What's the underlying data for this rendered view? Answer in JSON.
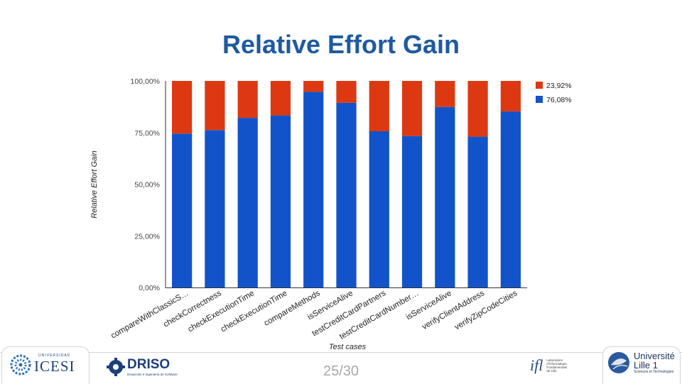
{
  "slide": {
    "title": "Relative Effort Gain",
    "page": "25/30",
    "accent": "#1f5aa0"
  },
  "chart_data": {
    "type": "bar",
    "stacked": true,
    "categories": [
      "compareWithClassicS…",
      "checkCorrectness",
      "checkExecutionTime",
      "checkExecutionTime",
      "compareMethods",
      "isServiceAlive",
      "testCreditCardPartners",
      "testCreditCardNumber…",
      "isServiceAlive",
      "verifyClientAddress",
      "verifyZipCodeCities"
    ],
    "series": [
      {
        "name": "76,08%",
        "color": "#1353c9",
        "values": [
          74.5,
          76.2,
          82.1,
          83.3,
          94.7,
          89.4,
          75.6,
          73.3,
          87.4,
          73.0,
          85.2
        ]
      },
      {
        "name": "23,92%",
        "color": "#dc3912",
        "values": [
          25.5,
          23.8,
          17.9,
          16.7,
          5.3,
          10.6,
          24.4,
          26.7,
          12.6,
          27.0,
          14.8
        ]
      }
    ],
    "legend_order": [
      1,
      0
    ],
    "yticks": [
      {
        "value": 0,
        "label": "0,00%"
      },
      {
        "value": 25,
        "label": "25,00%"
      },
      {
        "value": 50,
        "label": "50,00%"
      },
      {
        "value": 75,
        "label": "75,00%"
      },
      {
        "value": 100,
        "label": "100,00%"
      }
    ],
    "ylim": [
      0,
      100
    ],
    "xlabel": "Test cases",
    "ylabel": "Relative Effort Gain",
    "legend_position": "right",
    "grid": false
  },
  "footer": {
    "logos": [
      {
        "icon": "icesi-logo",
        "small": "UNIVERSIDAD",
        "name": "ICESI"
      },
      {
        "icon": "driso-logo",
        "name": "DRISO",
        "sub": "Desarrollo e Ingeniería de Software"
      },
      {
        "icon": "ifl-logo",
        "name": "ifl",
        "sub": [
          "Laboratoire",
          "d'Informatique",
          "Fondamentale",
          "de Lille"
        ]
      },
      {
        "icon": "lille1-logo",
        "name": [
          "Université",
          "Lille 1"
        ],
        "sub": "Sciences et Technologies"
      }
    ]
  }
}
